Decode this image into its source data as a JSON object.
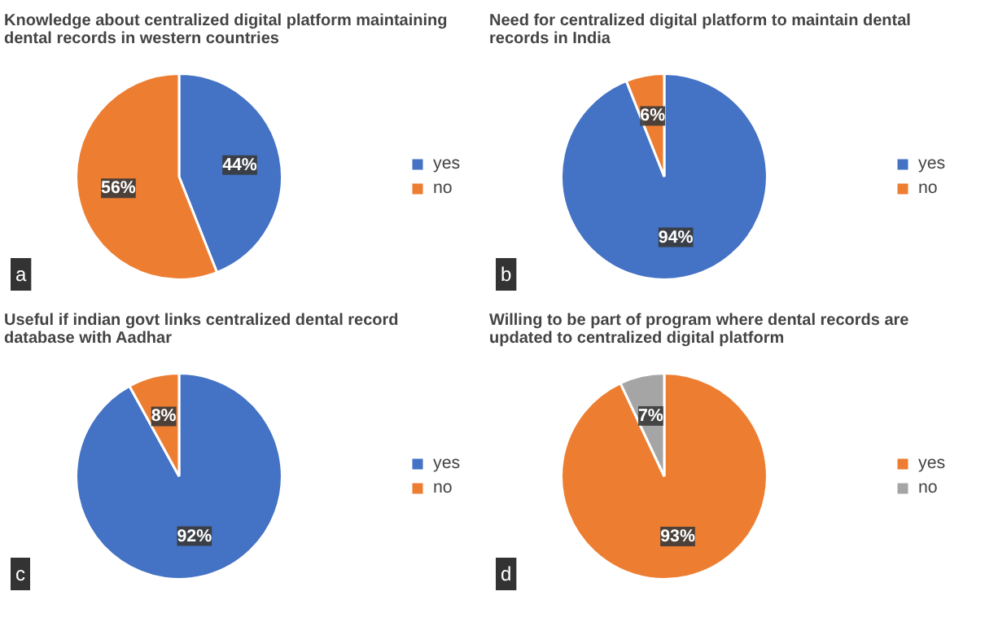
{
  "chart_data": [
    {
      "type": "pie",
      "title": "Knowledge about centralized digital platform maintaining dental records in western countries",
      "categories": [
        "yes",
        "no"
      ],
      "values": [
        44,
        56
      ],
      "colors": [
        "#4472c4",
        "#ed7d31"
      ],
      "value_labels": [
        "44%",
        "56%"
      ],
      "legend": "right",
      "annotations": [
        "a"
      ]
    },
    {
      "type": "pie",
      "title": "Need for centralized digital platform to maintain dental records in India",
      "categories": [
        "yes",
        "no"
      ],
      "values": [
        94,
        6
      ],
      "colors": [
        "#4472c4",
        "#ed7d31"
      ],
      "value_labels": [
        "94%",
        "6%"
      ],
      "legend": "right",
      "annotations": [
        "b"
      ]
    },
    {
      "type": "pie",
      "title": "Useful if indian govt links centralized dental record database with Aadhar",
      "categories": [
        "yes",
        "no"
      ],
      "values": [
        92,
        8
      ],
      "colors": [
        "#4472c4",
        "#ed7d31"
      ],
      "value_labels": [
        "92%",
        "8%"
      ],
      "legend": "right",
      "annotations": [
        "c"
      ]
    },
    {
      "type": "pie",
      "title": "Willing to be part of program where dental records are updated to centralized digital platform",
      "categories": [
        "yes",
        "no"
      ],
      "values": [
        93,
        7
      ],
      "colors": [
        "#ed7d31",
        "#a5a5a5"
      ],
      "value_labels": [
        "93%",
        "7%"
      ],
      "legend": "right",
      "annotations": [
        "d"
      ]
    }
  ]
}
